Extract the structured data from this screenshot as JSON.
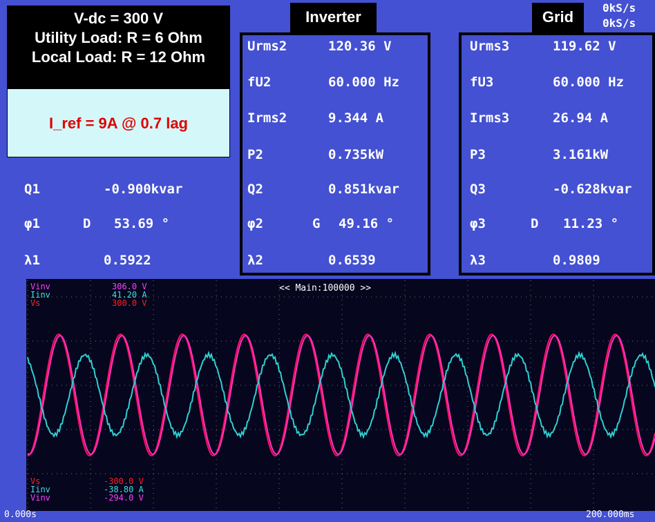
{
  "overlay": {
    "lines": [
      "V-dc = 300 V",
      "Utility Load: R = 6 Ohm",
      "Local Load: R = 12 Ohm"
    ],
    "note": "I_ref = 9A @ 0.7 lag"
  },
  "headers": {
    "inverter": "Inverter",
    "grid": "Grid"
  },
  "top_right": [
    "0kS/s",
    "0kS/s"
  ],
  "panel1": {
    "rows": [
      {
        "label": "Q1",
        "value": "-0.900kvar"
      },
      {
        "label": "φ1",
        "flag": "D",
        "value": "53.69 °"
      },
      {
        "label": "λ1",
        "value": "0.5922"
      }
    ]
  },
  "panel2": {
    "rows": [
      {
        "label": "Urms2",
        "value": "120.36 V"
      },
      {
        "label": "fU2",
        "value": "60.000 Hz"
      },
      {
        "label": "Irms2",
        "value": "9.344 A"
      },
      {
        "label": "P2",
        "value": "0.735kW"
      },
      {
        "label": "Q2",
        "value": "0.851kvar"
      },
      {
        "label": "φ2",
        "flag": "G",
        "value": "49.16 °"
      },
      {
        "label": "λ2",
        "value": "0.6539"
      }
    ]
  },
  "panel3": {
    "rows": [
      {
        "label": "Urms3",
        "value": "119.62 V"
      },
      {
        "label": "fU3",
        "value": "60.000 Hz"
      },
      {
        "label": "Irms3",
        "value": "26.94 A"
      },
      {
        "label": "P3",
        "value": "3.161kW"
      },
      {
        "label": "Q3",
        "value": "-0.628kvar"
      },
      {
        "label": "φ3",
        "flag": "D",
        "value": "11.23 °"
      },
      {
        "label": "λ3",
        "value": "0.9809"
      }
    ]
  },
  "scope": {
    "top_labels": [
      {
        "name": "Vinv",
        "value": "306.0 V"
      },
      {
        "name": "Iinv",
        "value": "41.20 A"
      },
      {
        "name": "Vs",
        "value": "300.0 V"
      }
    ],
    "bottom_labels": [
      {
        "name": "Vs",
        "value": "-300.0 V"
      },
      {
        "name": "Iinv",
        "value": "-38.80 A"
      },
      {
        "name": "Vinv",
        "value": "-294.0 V"
      }
    ],
    "trigger": "<< Main:100000 >>",
    "time_start": "0.000s",
    "time_end": "200.000ms"
  }
}
